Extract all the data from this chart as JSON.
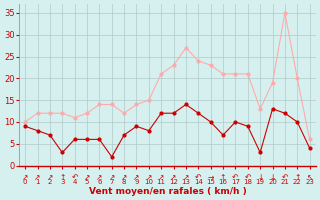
{
  "hours": [
    0,
    1,
    2,
    3,
    4,
    5,
    6,
    7,
    8,
    9,
    10,
    11,
    12,
    13,
    14,
    15,
    16,
    17,
    18,
    19,
    20,
    21,
    22,
    23
  ],
  "wind_avg": [
    9,
    8,
    7,
    3,
    6,
    6,
    6,
    2,
    7,
    9,
    8,
    12,
    12,
    14,
    12,
    10,
    7,
    10,
    9,
    3,
    13,
    12,
    10,
    4
  ],
  "wind_gust": [
    10,
    12,
    12,
    12,
    11,
    12,
    14,
    14,
    12,
    14,
    15,
    21,
    23,
    27,
    24,
    23,
    21,
    21,
    21,
    13,
    19,
    35,
    20,
    6
  ],
  "line_avg_color": "#cc0000",
  "line_gust_color": "#ffaaaa",
  "marker_size": 2.0,
  "bg_color": "#d6f0f0",
  "grid_color": "#b0c8c8",
  "xlabel": "Vent moyen/en rafales ( km/h )",
  "xlabel_color": "#cc0000",
  "tick_color": "#cc0000",
  "ylabel_ticks": [
    0,
    5,
    10,
    15,
    20,
    25,
    30,
    35
  ],
  "xlim": [
    -0.5,
    23.5
  ],
  "ylim": [
    0,
    37
  ],
  "arrows": [
    "↗",
    "↗",
    "↗",
    "↑",
    "↶",
    "↗",
    "↗",
    "↗",
    "↗",
    "↗",
    "↗",
    "↗",
    "↗",
    "↗",
    "↶",
    "→",
    "↑",
    "↶",
    "↶",
    "↓",
    "↓",
    "↶",
    "↑",
    "↖"
  ]
}
